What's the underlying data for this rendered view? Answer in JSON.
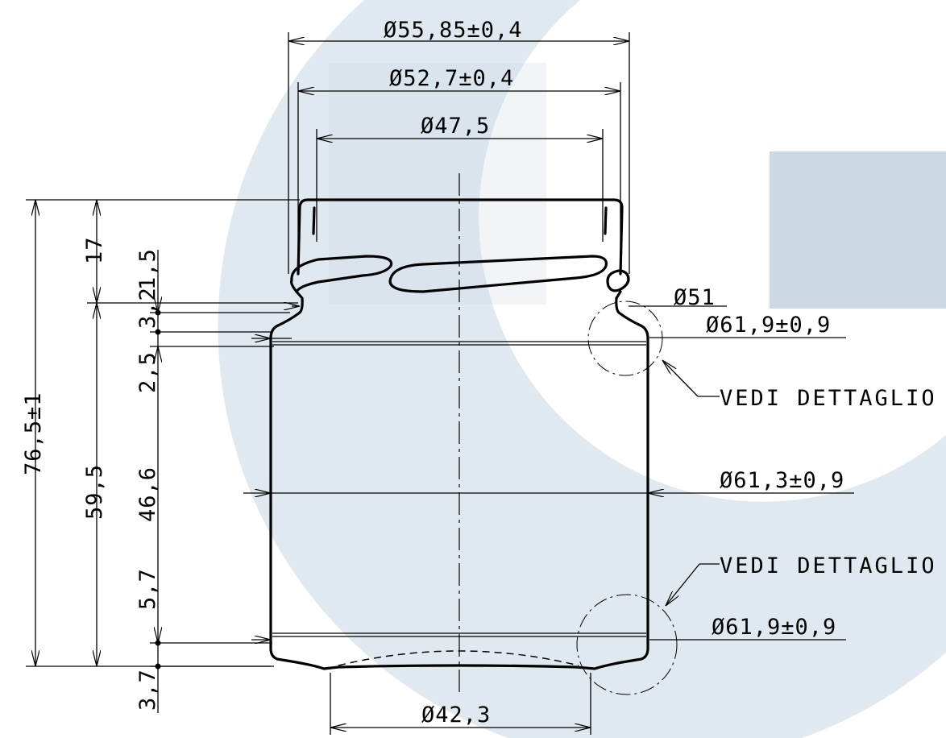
{
  "drawing": {
    "diameters": {
      "finish_outer": "Ø55,85±0,4",
      "thread_root": "Ø52,7±0,4",
      "bore": "Ø47,5",
      "neck": "Ø51",
      "shoulder": "Ø61,9±0,9",
      "body": "Ø61,3±0,9",
      "heel": "Ø61,9±0,9",
      "base": "Ø42,3"
    },
    "heights": {
      "overall": "76,5±1",
      "finish": "17",
      "body_height": "59,5",
      "finish_band": "1,5",
      "neck_height": "3,2",
      "shoulder_height": "2,5",
      "body_straight": "46,6",
      "heel_height": "5,7",
      "base_height": "3,7"
    },
    "notes": {
      "detail_b": "VEDI DETTAGLIO B",
      "detail_c": "VEDI DETTAGLIO C"
    },
    "colors": {
      "line": "#000000",
      "watermark": "#c9d7e3"
    }
  }
}
